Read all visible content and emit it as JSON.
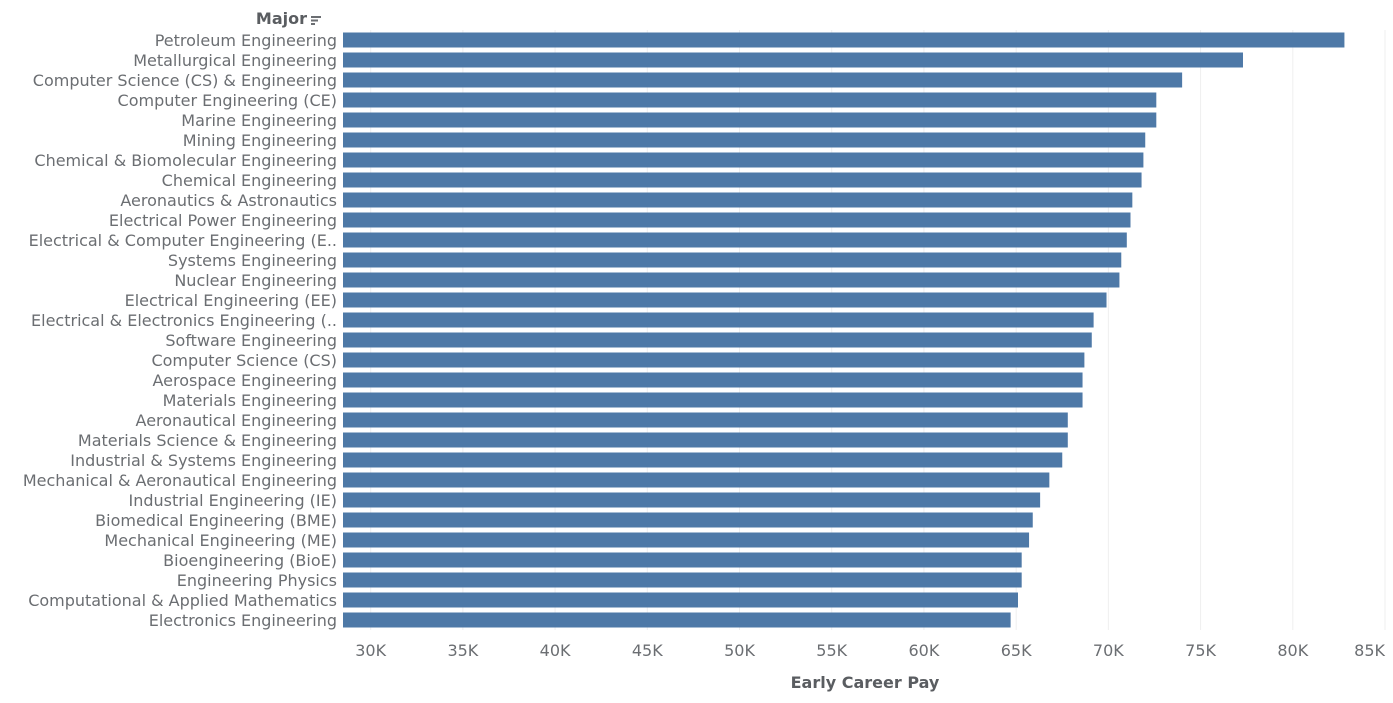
{
  "chart_data": {
    "type": "bar",
    "orientation": "horizontal",
    "category_header": "Major",
    "header_icon": "sort-icon",
    "xlabel": "Early Career Pay",
    "xlim": [
      28500,
      85000
    ],
    "ticks": [
      30000,
      35000,
      40000,
      45000,
      50000,
      55000,
      60000,
      65000,
      70000,
      75000,
      80000,
      85000
    ],
    "tick_labels": [
      "30K",
      "35K",
      "40K",
      "45K",
      "50K",
      "55K",
      "60K",
      "65K",
      "70K",
      "75K",
      "80K",
      "85K"
    ],
    "grid": true,
    "bar_color": "#4e79a7",
    "categories": [
      "Petroleum Engineering",
      "Metallurgical Engineering",
      "Computer Science (CS) & Engineering",
      "Computer Engineering (CE)",
      "Marine Engineering",
      "Mining Engineering",
      "Chemical & Biomolecular Engineering",
      "Chemical Engineering",
      "Aeronautics & Astronautics",
      "Electrical Power Engineering",
      "Electrical & Computer Engineering (E..",
      "Systems Engineering",
      "Nuclear Engineering",
      "Electrical Engineering (EE)",
      "Electrical & Electronics Engineering (..",
      "Software Engineering",
      "Computer Science (CS)",
      "Aerospace Engineering",
      "Materials Engineering",
      "Aeronautical Engineering",
      "Materials Science & Engineering",
      "Industrial & Systems Engineering",
      "Mechanical & Aeronautical Engineering",
      "Industrial Engineering (IE)",
      "Biomedical Engineering (BME)",
      "Mechanical Engineering (ME)",
      "Bioengineering (BioE)",
      "Engineering Physics",
      "Computational & Applied Mathematics",
      "Electronics Engineering"
    ],
    "values": [
      82800,
      77300,
      74000,
      72600,
      72600,
      72000,
      71900,
      71800,
      71300,
      71200,
      71000,
      70700,
      70600,
      69900,
      69200,
      69100,
      68700,
      68600,
      68600,
      67800,
      67800,
      67500,
      66800,
      66300,
      65900,
      65700,
      65300,
      65300,
      65100,
      64700
    ]
  }
}
